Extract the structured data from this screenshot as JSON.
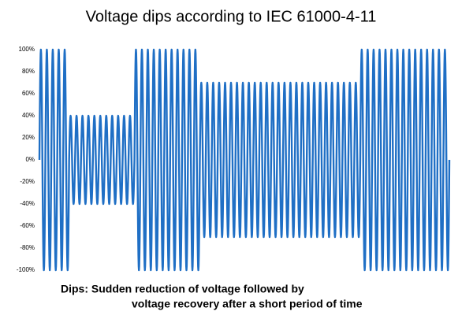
{
  "chart_data": {
    "type": "line",
    "title": "Voltage dips according to IEC 61000-4-11",
    "color": "#1f6fc5",
    "ylim": [
      -100,
      100
    ],
    "yticks": [
      {
        "value": -100,
        "label": "-100%"
      },
      {
        "value": -80,
        "label": "-80%"
      },
      {
        "value": -60,
        "label": "-60%"
      },
      {
        "value": -40,
        "label": "-40%"
      },
      {
        "value": -20,
        "label": "-20%"
      },
      {
        "value": 0,
        "label": "0%"
      },
      {
        "value": 20,
        "label": "20%"
      },
      {
        "value": 40,
        "label": "40%"
      },
      {
        "value": 60,
        "label": "60%"
      },
      {
        "value": 80,
        "label": "80%"
      },
      {
        "value": 100,
        "label": "100%"
      }
    ],
    "segments": [
      {
        "amplitude": 100,
        "cycles": 5
      },
      {
        "amplitude": 40,
        "cycles": 11
      },
      {
        "amplitude": 100,
        "cycles": 11
      },
      {
        "amplitude": 70,
        "cycles": 27
      },
      {
        "amplitude": 100,
        "cycles": 15
      }
    ],
    "caption": [
      "Dips: Sudden reduction of voltage followed by",
      "voltage recovery after a short period of time"
    ]
  }
}
